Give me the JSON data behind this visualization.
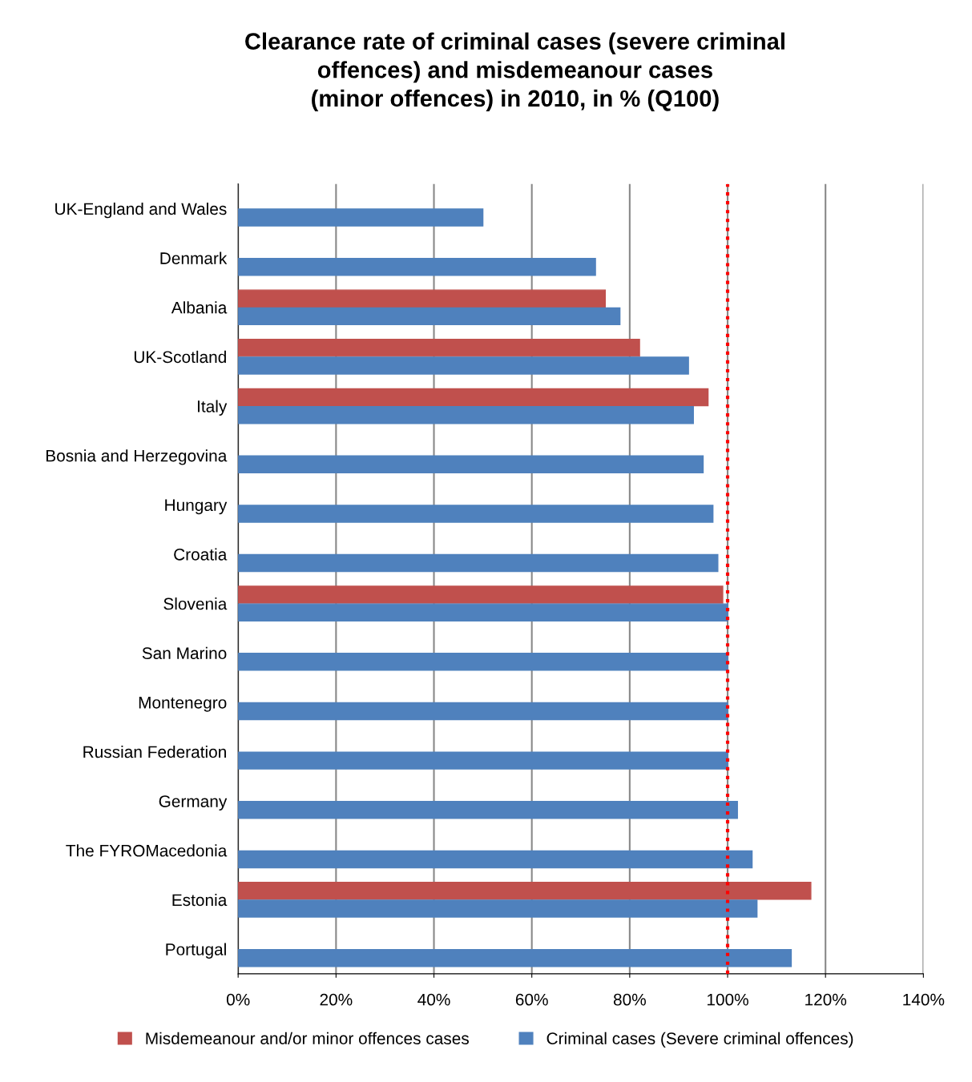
{
  "chart_data": {
    "type": "bar",
    "orientation": "horizontal",
    "title": "Clearance rate of criminal cases (severe criminal\noffences) and misdemeanour cases\n(minor offences) in 2010, in % (Q100)",
    "categories": [
      "UK-England and Wales",
      "Denmark",
      "Albania",
      "UK-Scotland",
      "Italy",
      "Bosnia and Herzegovina",
      "Hungary",
      "Croatia",
      "Slovenia",
      "San Marino",
      "Montenegro",
      "Russian Federation",
      "Germany",
      "The FYROMacedonia",
      "Estonia",
      "Portugal"
    ],
    "series": [
      {
        "name": "Misdemeanour and/or minor offences cases",
        "color": "#c0504d",
        "values": [
          null,
          null,
          75,
          82,
          96,
          null,
          null,
          null,
          99,
          null,
          null,
          null,
          null,
          null,
          117,
          null
        ]
      },
      {
        "name": "Criminal cases (Severe criminal offences)",
        "color": "#4f81bd",
        "values": [
          50,
          73,
          78,
          92,
          93,
          95,
          97,
          98,
          100,
          100,
          100,
          100,
          102,
          105,
          106,
          113
        ]
      }
    ],
    "xlim": [
      0,
      140
    ],
    "xticks": [
      {
        "value": 0,
        "label": "0%"
      },
      {
        "value": 20,
        "label": "20%"
      },
      {
        "value": 40,
        "label": "40%"
      },
      {
        "value": 60,
        "label": "60%"
      },
      {
        "value": 80,
        "label": "80%"
      },
      {
        "value": 100,
        "label": "100%"
      },
      {
        "value": 120,
        "label": "120%"
      },
      {
        "value": 140,
        "label": "140%"
      }
    ],
    "grid": "x",
    "legend": "bottom",
    "ref_lines": [
      {
        "axis": "x",
        "value": 100,
        "label": null,
        "color": "#ff0000",
        "line_style": "dotted"
      }
    ]
  }
}
